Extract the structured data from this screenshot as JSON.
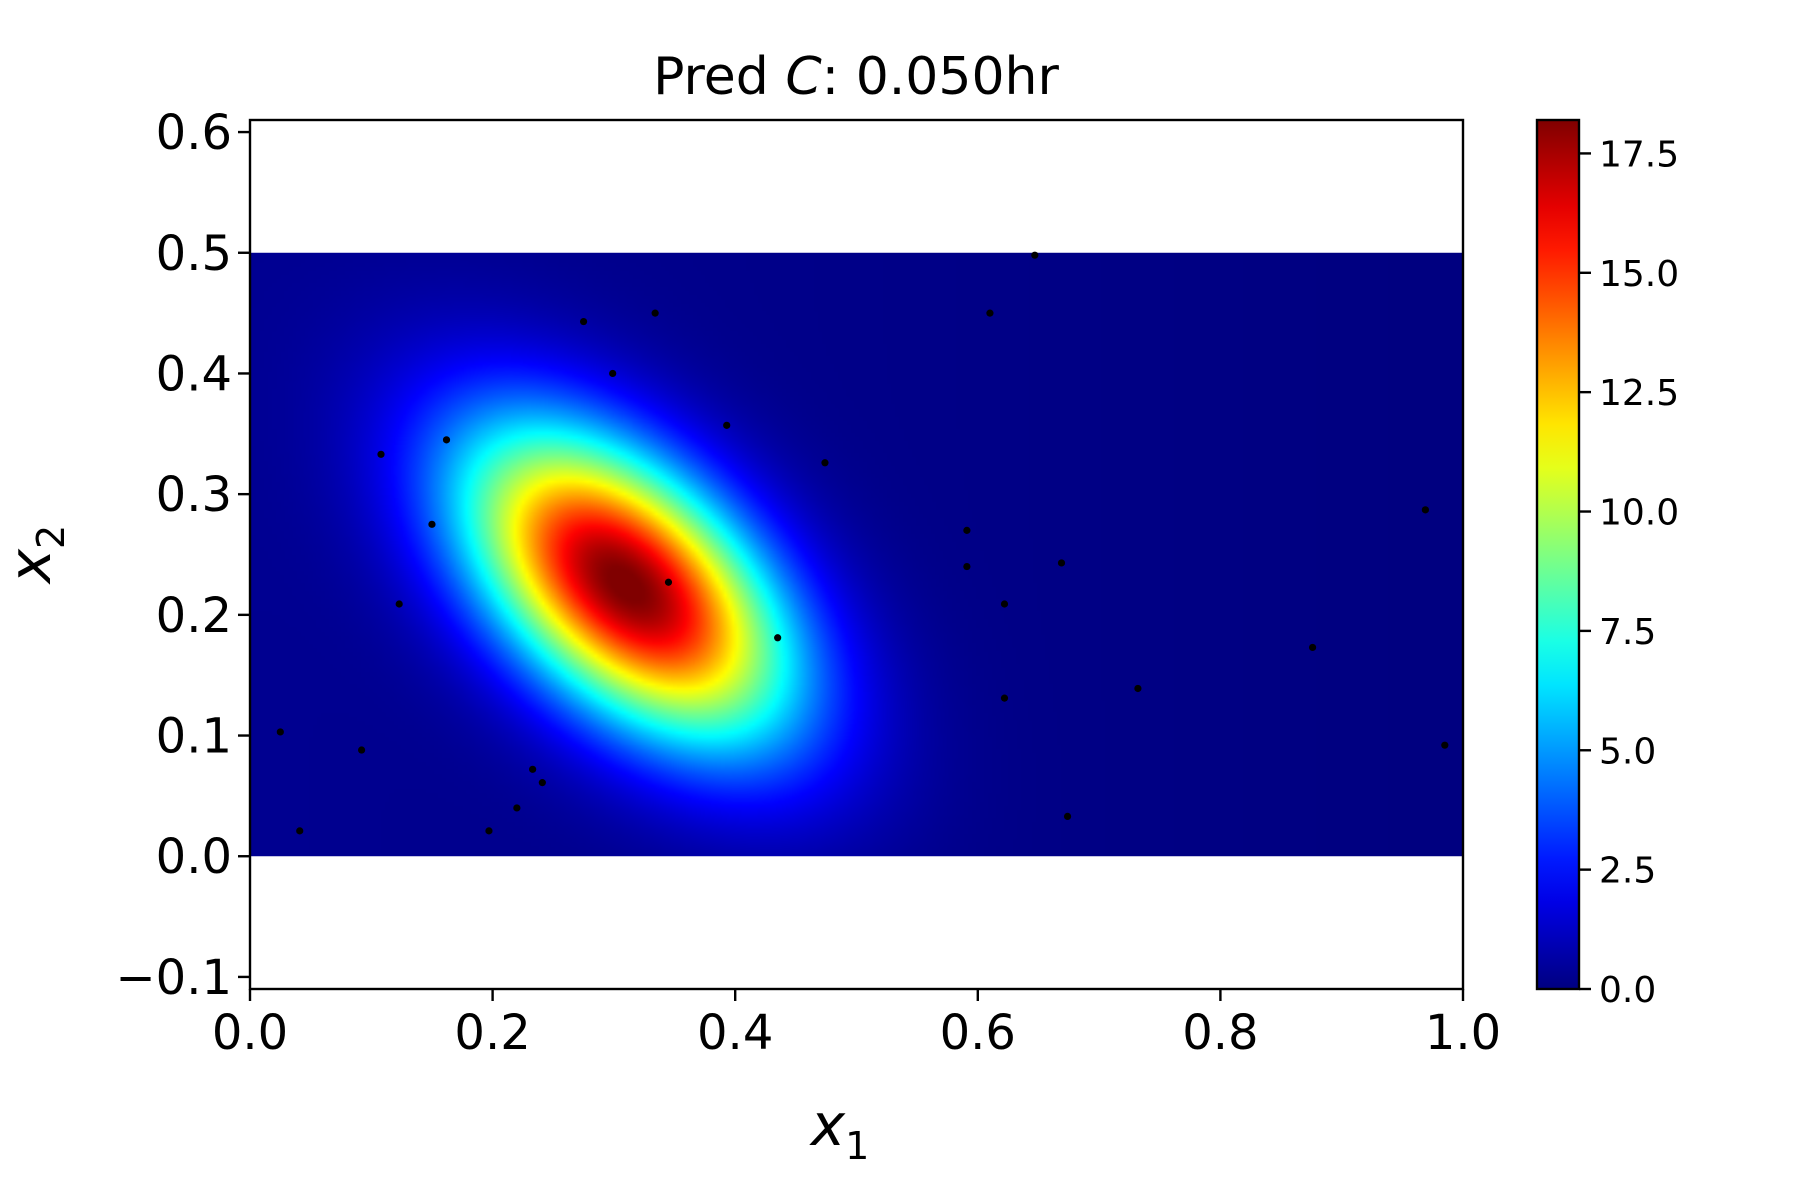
{
  "chart_data": {
    "type": "heatmap",
    "title_prefix": "Pred ",
    "title_var": "C",
    "title_suffix": ":  0.050hr",
    "xlabel_main": "x",
    "xlabel_sub": "1",
    "ylabel_main": "x",
    "ylabel_sub": "2",
    "xlim": [
      0.0,
      1.0
    ],
    "ylim": [
      -0.11,
      0.61
    ],
    "field_extent": {
      "x": [
        0.0,
        1.0
      ],
      "y": [
        0.0,
        0.5
      ]
    },
    "peak": {
      "x": 0.31,
      "y": 0.225,
      "value": 18.2
    },
    "x_ticks": [
      "0.0",
      "0.2",
      "0.4",
      "0.6",
      "0.8",
      "1.0"
    ],
    "y_ticks": [
      "−0.1",
      "0.0",
      "0.1",
      "0.2",
      "0.3",
      "0.4",
      "0.5",
      "0.6"
    ],
    "colorbar": {
      "colormap": "jet",
      "range": [
        0.0,
        18.2
      ],
      "ticks": [
        "0.0",
        "2.5",
        "5.0",
        "7.5",
        "10.0",
        "12.5",
        "15.0",
        "17.5"
      ]
    },
    "points": [
      [
        0.025,
        0.103
      ],
      [
        0.041,
        0.021
      ],
      [
        0.092,
        0.088
      ],
      [
        0.108,
        0.333
      ],
      [
        0.123,
        0.209
      ],
      [
        0.15,
        0.275
      ],
      [
        0.162,
        0.345
      ],
      [
        0.197,
        0.021
      ],
      [
        0.22,
        0.04
      ],
      [
        0.233,
        0.072
      ],
      [
        0.241,
        0.061
      ],
      [
        0.275,
        0.443
      ],
      [
        0.299,
        0.4
      ],
      [
        0.334,
        0.45
      ],
      [
        0.345,
        0.227
      ],
      [
        0.393,
        0.357
      ],
      [
        0.435,
        0.181
      ],
      [
        0.474,
        0.326
      ],
      [
        0.591,
        0.27
      ],
      [
        0.591,
        0.24
      ],
      [
        0.61,
        0.45
      ],
      [
        0.622,
        0.209
      ],
      [
        0.622,
        0.131
      ],
      [
        0.647,
        0.498
      ],
      [
        0.669,
        0.243
      ],
      [
        0.674,
        0.033
      ],
      [
        0.732,
        0.139
      ],
      [
        0.876,
        0.173
      ],
      [
        0.969,
        0.287
      ],
      [
        0.985,
        0.092
      ]
    ]
  }
}
